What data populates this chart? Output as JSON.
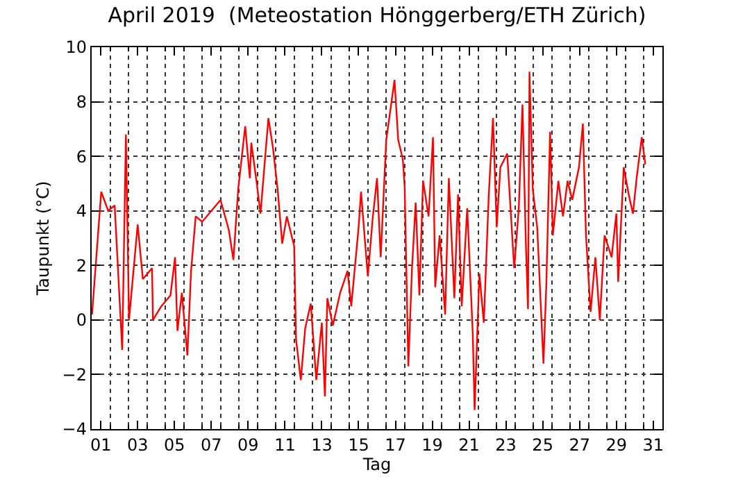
{
  "chart_data": {
    "type": "line",
    "title": "April 2019  (Meteostation Hönggerberg/ETH Zürich)",
    "xlabel": "Tag",
    "ylabel": "Taupunkt (°C)",
    "x": [
      0.52,
      1.02,
      1.4,
      1.75,
      2.16,
      2.36,
      2.53,
      3.0,
      3.28,
      3.78,
      3.83,
      4.28,
      4.78,
      5.03,
      5.16,
      5.4,
      5.7,
      5.9,
      6.15,
      6.5,
      7.5,
      7.95,
      8.2,
      8.46,
      8.84,
      9.09,
      9.17,
      9.47,
      9.67,
      10.1,
      10.35,
      10.6,
      10.85,
      11.1,
      11.5,
      11.6,
      11.86,
      12.1,
      12.4,
      12.7,
      13.0,
      13.17,
      13.3,
      13.6,
      14.0,
      14.4,
      14.6,
      15.0,
      15.13,
      15.5,
      15.76,
      16.0,
      16.2,
      16.5,
      16.95,
      17.15,
      17.4,
      17.5,
      17.7,
      17.9,
      18.1,
      18.3,
      18.5,
      18.8,
      19.04,
      19.16,
      19.4,
      19.7,
      19.9,
      20.2,
      20.4,
      20.6,
      20.9,
      21.2,
      21.3,
      21.56,
      21.8,
      22.07,
      22.3,
      22.5,
      22.7,
      23.07,
      23.45,
      23.7,
      23.9,
      24.08,
      24.2,
      24.28,
      24.46,
      24.7,
      25.04,
      25.2,
      25.4,
      25.55,
      25.85,
      26.1,
      26.35,
      26.6,
      26.97,
      27.18,
      27.35,
      27.6,
      27.86,
      28.1,
      28.36,
      28.74,
      29.0,
      29.1,
      29.4,
      29.67,
      29.9,
      30.1,
      30.38,
      30.57
    ],
    "series": [
      {
        "color": "#ff0000",
        "values": [
          0.2,
          4.7,
          4.0,
          4.2,
          -1.1,
          6.8,
          0.0,
          3.5,
          1.5,
          1.9,
          0.0,
          0.5,
          0.9,
          2.3,
          -0.4,
          1.0,
          -1.3,
          1.8,
          3.8,
          3.6,
          4.4,
          3.3,
          2.2,
          4.8,
          7.1,
          5.2,
          6.5,
          5.0,
          3.9,
          7.4,
          6.3,
          4.8,
          2.8,
          3.8,
          2.7,
          -0.7,
          -2.2,
          -0.3,
          0.6,
          -2.2,
          -0.1,
          -2.8,
          0.8,
          -0.2,
          1.0,
          1.8,
          0.5,
          3.4,
          4.7,
          1.6,
          3.7,
          5.2,
          2.3,
          6.6,
          8.8,
          6.6,
          5.9,
          4.9,
          -1.7,
          1.9,
          4.3,
          0.9,
          5.1,
          3.8,
          6.7,
          1.2,
          3.1,
          0.2,
          5.2,
          0.8,
          4.6,
          0.5,
          4.1,
          -0.5,
          -3.3,
          1.7,
          -0.1,
          4.6,
          7.4,
          3.4,
          5.6,
          6.1,
          1.9,
          4.1,
          7.9,
          2.9,
          0.4,
          9.1,
          4.8,
          3.4,
          -1.6,
          1.4,
          6.9,
          3.1,
          5.1,
          3.8,
          5.1,
          4.4,
          5.6,
          7.2,
          3.1,
          0.3,
          2.3,
          0.0,
          3.1,
          2.3,
          3.9,
          1.4,
          5.6,
          4.6,
          3.9,
          5.2,
          6.7,
          5.7
        ]
      }
    ],
    "xlim": [
      0.5,
      31.5
    ],
    "xticks": [
      {
        "value": 1,
        "label": "01"
      },
      {
        "value": 3,
        "label": "03"
      },
      {
        "value": 5,
        "label": "05"
      },
      {
        "value": 7,
        "label": "07"
      },
      {
        "value": 9,
        "label": "09"
      },
      {
        "value": 11,
        "label": "11"
      },
      {
        "value": 13,
        "label": "13"
      },
      {
        "value": 15,
        "label": "15"
      },
      {
        "value": 17,
        "label": "17"
      },
      {
        "value": 19,
        "label": "19"
      },
      {
        "value": 21,
        "label": "21"
      },
      {
        "value": 23,
        "label": "23"
      },
      {
        "value": 25,
        "label": "25"
      },
      {
        "value": 27,
        "label": "27"
      },
      {
        "value": 29,
        "label": "29"
      },
      {
        "value": 31,
        "label": "31"
      },
      {
        "value": 1.5,
        "label": null
      },
      {
        "value": 2.5,
        "label": null
      },
      {
        "value": 3.5,
        "label": null
      },
      {
        "value": 4.5,
        "label": null
      },
      {
        "value": 5.5,
        "label": null
      },
      {
        "value": 6.5,
        "label": null
      },
      {
        "value": 7.5,
        "label": null
      },
      {
        "value": 8.5,
        "label": null
      },
      {
        "value": 9.5,
        "label": null
      },
      {
        "value": 10.5,
        "label": null
      },
      {
        "value": 11.5,
        "label": null
      },
      {
        "value": 12.5,
        "label": null
      },
      {
        "value": 13.5,
        "label": null
      },
      {
        "value": 14.5,
        "label": null
      },
      {
        "value": 15.5,
        "label": null
      },
      {
        "value": 16.5,
        "label": null
      },
      {
        "value": 17.5,
        "label": null
      },
      {
        "value": 18.5,
        "label": null
      },
      {
        "value": 19.5,
        "label": null
      },
      {
        "value": 20.5,
        "label": null
      },
      {
        "value": 21.5,
        "label": null
      },
      {
        "value": 22.5,
        "label": null
      },
      {
        "value": 23.5,
        "label": null
      },
      {
        "value": 24.5,
        "label": null
      },
      {
        "value": 25.5,
        "label": null
      },
      {
        "value": 26.5,
        "label": null
      },
      {
        "value": 27.5,
        "label": null
      },
      {
        "value": 28.5,
        "label": null
      },
      {
        "value": 29.5,
        "label": null
      },
      {
        "value": 30.5,
        "label": null
      }
    ],
    "ylim": [
      -4,
      10
    ],
    "yticks": [
      -4,
      -2,
      0,
      2,
      4,
      6,
      8,
      10
    ],
    "grid": true,
    "marker": "none",
    "line_style": "solid"
  }
}
